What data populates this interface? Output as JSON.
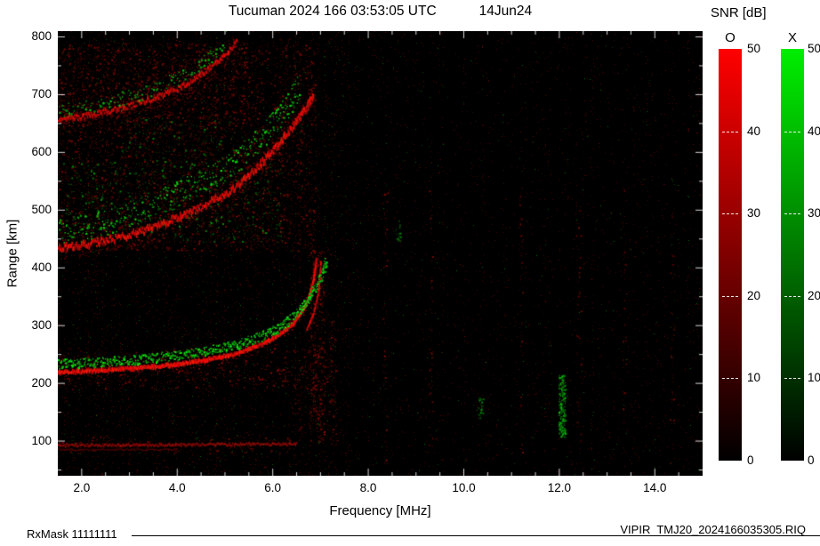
{
  "header": {
    "title": "Tucuman 2024 166 03:53:05 UTC",
    "date": "14Jun24"
  },
  "footer": {
    "left": "RxMask 11111111",
    "right": "VIPIR  TMJ20_2024166035305.RIQ"
  },
  "colorbar": {
    "title": "SNR [dB]",
    "o_label": "O",
    "x_label": "X",
    "min": 0,
    "max": 50,
    "ticks": [
      50,
      40,
      30,
      20,
      10,
      0
    ],
    "dash_values": [
      40,
      30,
      20,
      10
    ],
    "o_color": "#ff0000",
    "x_color": "#00ee00"
  },
  "chart_data": {
    "type": "heatmap",
    "title": "Tucuman 2024 166 03:53:05 UTC 14Jun24",
    "subtitle": "VIPIR ionogram, O/X mode SNR in dB",
    "xlabel": "Frequency [MHz]",
    "ylabel": "Range [km]",
    "xlim": [
      1.5,
      15.0
    ],
    "ylim": [
      40,
      810
    ],
    "xticks": [
      2,
      4,
      6,
      8,
      10,
      12,
      14
    ],
    "xtick_labels": [
      "2.0",
      "4.0",
      "6.0",
      "8.0",
      "10.0",
      "12.0",
      "14.0"
    ],
    "x_minor_step": 0.5,
    "yticks": [
      100,
      200,
      300,
      400,
      500,
      600,
      700,
      800
    ],
    "y_minor_step": 50,
    "snr_scale_db": [
      0,
      50
    ],
    "background": "#000000",
    "legend": {
      "O_mode_color": "#ff0000",
      "X_mode_color": "#00cc00",
      "legend_position": "right"
    },
    "traces": [
      {
        "name": "E-layer-echo",
        "mode": "O",
        "style": "line",
        "color": [
          150,
          20,
          10
        ],
        "thickness": 2,
        "jitter": 3,
        "speckle_density": 0.12,
        "points": [
          [
            1.5,
            93
          ],
          [
            3.0,
            93
          ],
          [
            5.0,
            94
          ],
          [
            6.5,
            95
          ]
        ]
      },
      {
        "name": "E-layer-echo-weak",
        "mode": "O",
        "style": "line",
        "color": [
          95,
          12,
          6
        ],
        "thickness": 1,
        "jitter": 2,
        "speckle_density": 0.05,
        "points": [
          [
            1.5,
            85
          ],
          [
            4.0,
            85
          ]
        ]
      },
      {
        "name": "F2-1hop-O",
        "mode": "O",
        "style": "line",
        "color": [
          255,
          30,
          18
        ],
        "thickness": 4,
        "jitter": 3,
        "speckle_density": 0.5,
        "points": [
          [
            1.5,
            219
          ],
          [
            2.0,
            221
          ],
          [
            2.5,
            223
          ],
          [
            3.0,
            226
          ],
          [
            3.5,
            229
          ],
          [
            4.0,
            233
          ],
          [
            4.5,
            239
          ],
          [
            5.0,
            247
          ],
          [
            5.4,
            256
          ],
          [
            5.8,
            269
          ],
          [
            6.1,
            283
          ],
          [
            6.4,
            302
          ],
          [
            6.6,
            323
          ],
          [
            6.75,
            350
          ],
          [
            6.85,
            382
          ],
          [
            6.9,
            412
          ]
        ]
      },
      {
        "name": "F2-1hop-O-cusp",
        "mode": "O",
        "style": "line",
        "color": [
          225,
          24,
          14
        ],
        "thickness": 2,
        "jitter": 2,
        "speckle_density": 0.2,
        "points": [
          [
            6.7,
            292
          ],
          [
            6.85,
            322
          ],
          [
            6.95,
            358
          ],
          [
            7.0,
            412
          ]
        ]
      },
      {
        "name": "F2-1hop-X",
        "mode": "X",
        "style": "speckle",
        "color": [
          30,
          235,
          30
        ],
        "band": 11,
        "density": 1.7,
        "points": [
          [
            1.5,
            234
          ],
          [
            2.0,
            236
          ],
          [
            2.5,
            238
          ],
          [
            3.0,
            241
          ],
          [
            3.5,
            245
          ],
          [
            4.0,
            249
          ],
          [
            4.5,
            255
          ],
          [
            5.0,
            263
          ],
          [
            5.4,
            272
          ],
          [
            5.8,
            284
          ],
          [
            6.2,
            301
          ],
          [
            6.5,
            321
          ],
          [
            6.7,
            343
          ],
          [
            6.9,
            369
          ],
          [
            7.05,
            396
          ],
          [
            7.12,
            415
          ]
        ]
      },
      {
        "name": "F2-2hop-O",
        "mode": "O",
        "style": "line",
        "color": [
          235,
          26,
          15
        ],
        "thickness": 4,
        "jitter": 8,
        "speckle_density": 0.8,
        "points": [
          [
            1.5,
            433
          ],
          [
            2.0,
            439
          ],
          [
            2.5,
            447
          ],
          [
            3.0,
            457
          ],
          [
            3.5,
            470
          ],
          [
            4.0,
            487
          ],
          [
            4.5,
            505
          ],
          [
            5.0,
            527
          ],
          [
            5.4,
            553
          ],
          [
            5.8,
            585
          ],
          [
            6.2,
            622
          ],
          [
            6.5,
            655
          ],
          [
            6.7,
            678
          ],
          [
            6.85,
            702
          ]
        ]
      },
      {
        "name": "F2-2hop-X",
        "mode": "X",
        "style": "speckle",
        "color": [
          26,
          215,
          26
        ],
        "band": 30,
        "density": 1.0,
        "points": [
          [
            1.5,
            462
          ],
          [
            2.0,
            470
          ],
          [
            2.5,
            480
          ],
          [
            3.0,
            494
          ],
          [
            3.5,
            510
          ],
          [
            4.0,
            528
          ],
          [
            4.5,
            548
          ],
          [
            5.0,
            572
          ],
          [
            5.4,
            598
          ],
          [
            5.8,
            630
          ],
          [
            6.1,
            660
          ],
          [
            6.4,
            692
          ],
          [
            6.55,
            716
          ]
        ]
      },
      {
        "name": "F2-3hop-O",
        "mode": "O",
        "style": "line",
        "color": [
          220,
          22,
          13
        ],
        "thickness": 3,
        "jitter": 6,
        "speckle_density": 0.7,
        "points": [
          [
            1.5,
            656
          ],
          [
            2.0,
            662
          ],
          [
            2.5,
            670
          ],
          [
            3.0,
            680
          ],
          [
            3.5,
            694
          ],
          [
            4.0,
            710
          ],
          [
            4.3,
            724
          ],
          [
            4.6,
            742
          ],
          [
            4.9,
            762
          ],
          [
            5.1,
            778
          ],
          [
            5.25,
            792
          ]
        ]
      },
      {
        "name": "F2-3hop-X",
        "mode": "X",
        "style": "speckle",
        "color": [
          22,
          195,
          22
        ],
        "band": 16,
        "density": 0.6,
        "points": [
          [
            1.5,
            672
          ],
          [
            2.0,
            678
          ],
          [
            2.5,
            687
          ],
          [
            3.0,
            698
          ],
          [
            3.5,
            712
          ],
          [
            4.0,
            728
          ],
          [
            4.3,
            742
          ],
          [
            4.6,
            760
          ],
          [
            4.85,
            776
          ],
          [
            5.0,
            788
          ]
        ]
      }
    ],
    "noise_regions": [
      {
        "f0": 1.5,
        "f1": 6.9,
        "r0": 430,
        "r1": 790,
        "density": 0.05,
        "color": "red",
        "bright": 0.45
      },
      {
        "f0": 1.6,
        "f1": 6.2,
        "r0": 445,
        "r1": 585,
        "density": 0.022,
        "color": "green",
        "bright": 0.5
      },
      {
        "f0": 1.5,
        "f1": 7.2,
        "r0": 190,
        "r1": 262,
        "density": 0.04,
        "color": "red",
        "bright": 0.5
      },
      {
        "f0": 1.5,
        "f1": 6.5,
        "r0": 78,
        "r1": 108,
        "density": 0.025,
        "color": "red",
        "bright": 0.35
      },
      {
        "f0": 2.8,
        "f1": 5.2,
        "r0": 585,
        "r1": 660,
        "density": 0.018,
        "color": "green",
        "bright": 0.45
      },
      {
        "f0": 1.5,
        "f1": 5.5,
        "r0": 640,
        "r1": 790,
        "density": 0.035,
        "color": "red",
        "bright": 0.4
      }
    ],
    "noise_columns": [
      {
        "f": 6.92,
        "hw": 0.16,
        "r0": 95,
        "r1": 430,
        "density": 0.1,
        "color": "red",
        "bright": 0.5
      },
      {
        "f": 7.25,
        "hw": 0.08,
        "r0": 95,
        "r1": 310,
        "density": 0.06,
        "color": "red",
        "bright": 0.4
      },
      {
        "f": 6.55,
        "hw": 0.06,
        "r0": 100,
        "r1": 210,
        "density": 0.05,
        "color": "red",
        "bright": 0.35
      },
      {
        "f": 12.05,
        "hw": 0.07,
        "r0": 108,
        "r1": 215,
        "density": 0.5,
        "color": "green",
        "bright": 0.8
      },
      {
        "f": 10.35,
        "hw": 0.05,
        "r0": 140,
        "r1": 178,
        "density": 0.28,
        "color": "green",
        "bright": 0.6
      },
      {
        "f": 8.62,
        "hw": 0.05,
        "r0": 445,
        "r1": 482,
        "density": 0.2,
        "color": "green",
        "bright": 0.5
      },
      {
        "f": 8.35,
        "hw": 0.05,
        "r0": 60,
        "r1": 540,
        "density": 0.03,
        "color": "red",
        "bright": 0.4
      },
      {
        "f": 9.3,
        "hw": 0.04,
        "r0": 60,
        "r1": 540,
        "density": 0.03,
        "color": "red",
        "bright": 0.4
      },
      {
        "f": 11.2,
        "hw": 0.04,
        "r0": 60,
        "r1": 540,
        "density": 0.03,
        "color": "red",
        "bright": 0.4
      },
      {
        "f": 12.4,
        "hw": 0.05,
        "r0": 60,
        "r1": 540,
        "density": 0.03,
        "color": "red",
        "bright": 0.4
      },
      {
        "f": 13.35,
        "hw": 0.04,
        "r0": 60,
        "r1": 540,
        "density": 0.025,
        "color": "red",
        "bright": 0.35
      },
      {
        "f": 14.35,
        "hw": 0.04,
        "r0": 60,
        "r1": 540,
        "density": 0.025,
        "color": "red",
        "bright": 0.35
      }
    ],
    "base_noise": {
      "density_low_f": 0.03,
      "density_high_f": 0.013,
      "green_fraction": 0.09,
      "f_split": 7.6
    }
  }
}
